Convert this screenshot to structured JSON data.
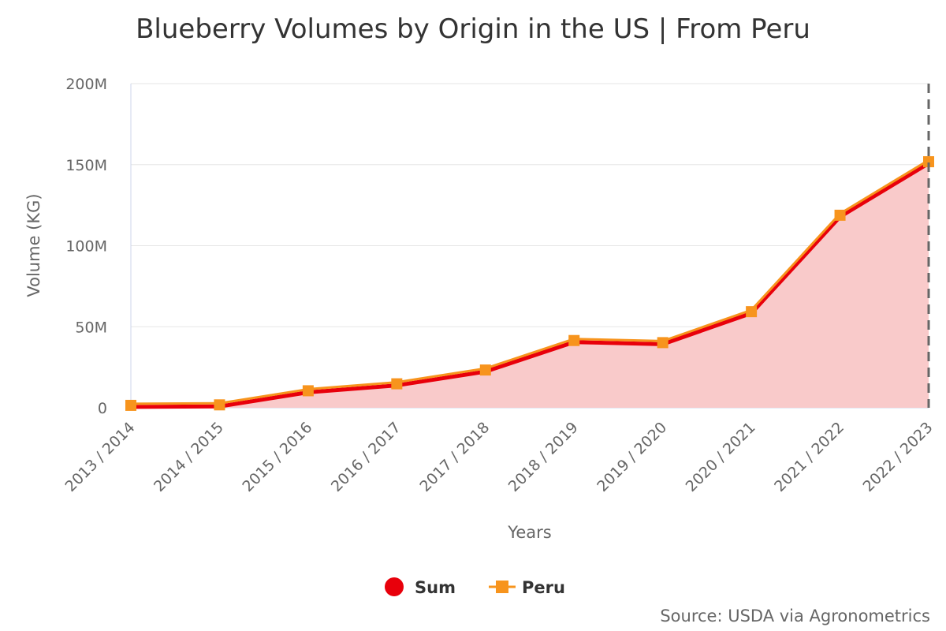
{
  "chart_data": {
    "type": "area",
    "title": "Blueberry Volumes by Origin in the US | From Peru",
    "xlabel": "Years",
    "ylabel": "Volume (KG)",
    "ylim": [
      0,
      200000000
    ],
    "yticks": [
      {
        "value": 0,
        "label": "0"
      },
      {
        "value": 50000000,
        "label": "50M"
      },
      {
        "value": 100000000,
        "label": "100M"
      },
      {
        "value": 150000000,
        "label": "150M"
      },
      {
        "value": 200000000,
        "label": "200M"
      }
    ],
    "categories": [
      "2013 / 2014",
      "2014 / 2015",
      "2015 / 2016",
      "2016 / 2017",
      "2017 / 2018",
      "2018 / 2019",
      "2019 / 2020",
      "2020 / 2021",
      "2021 / 2022",
      "2022 / 2023"
    ],
    "series": [
      {
        "name": "Sum",
        "color": "#e8000b",
        "fill": "#f9caca",
        "marker": "circle",
        "values": [
          1500000,
          1800000,
          10500000,
          14800000,
          23300000,
          41500000,
          40200000,
          59300000,
          118800000,
          151800000
        ]
      },
      {
        "name": "Peru",
        "color": "#f7941d",
        "marker": "square",
        "values": [
          1500000,
          1800000,
          10500000,
          14800000,
          23300000,
          41500000,
          40200000,
          59300000,
          118800000,
          151800000
        ]
      }
    ],
    "legend_position": "bottom-center",
    "grid": true,
    "source": "Source: USDA via Agronometrics"
  }
}
